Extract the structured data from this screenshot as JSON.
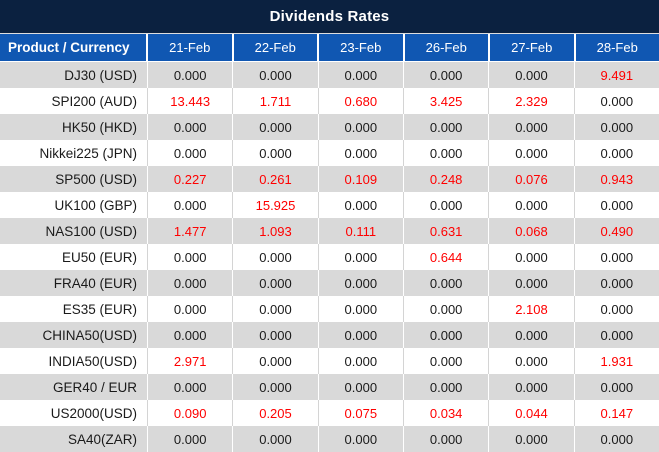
{
  "title": "Dividends Rates",
  "colors": {
    "title_bar_bg": "#0b2140",
    "header_bg": "#1057b2",
    "row_alt_bg": "#d9d9d9",
    "row_bg": "#ffffff",
    "value_red": "#ff0000",
    "value_black": "#1a1a1a",
    "header_text": "#ffffff",
    "border_on_white": "#d4d4d4",
    "border_on_gray": "#ffffff"
  },
  "table": {
    "product_header": "Product / Currency",
    "date_headers": [
      "21-Feb",
      "22-Feb",
      "23-Feb",
      "26-Feb",
      "27-Feb",
      "28-Feb"
    ],
    "rows": [
      {
        "product": "DJ30 (USD)",
        "values": [
          "0.000",
          "0.000",
          "0.000",
          "0.000",
          "0.000",
          "9.491"
        ]
      },
      {
        "product": "SPI200 (AUD)",
        "values": [
          "13.443",
          "1.711",
          "0.680",
          "3.425",
          "2.329",
          "0.000"
        ]
      },
      {
        "product": "HK50 (HKD)",
        "values": [
          "0.000",
          "0.000",
          "0.000",
          "0.000",
          "0.000",
          "0.000"
        ]
      },
      {
        "product": "Nikkei225 (JPN)",
        "values": [
          "0.000",
          "0.000",
          "0.000",
          "0.000",
          "0.000",
          "0.000"
        ]
      },
      {
        "product": "SP500 (USD)",
        "values": [
          "0.227",
          "0.261",
          "0.109",
          "0.248",
          "0.076",
          "0.943"
        ]
      },
      {
        "product": "UK100 (GBP)",
        "values": [
          "0.000",
          "15.925",
          "0.000",
          "0.000",
          "0.000",
          "0.000"
        ]
      },
      {
        "product": "NAS100 (USD)",
        "values": [
          "1.477",
          "1.093",
          "0.111",
          "0.631",
          "0.068",
          "0.490"
        ]
      },
      {
        "product": "EU50 (EUR)",
        "values": [
          "0.000",
          "0.000",
          "0.000",
          "0.644",
          "0.000",
          "0.000"
        ]
      },
      {
        "product": "FRA40 (EUR)",
        "values": [
          "0.000",
          "0.000",
          "0.000",
          "0.000",
          "0.000",
          "0.000"
        ]
      },
      {
        "product": "ES35 (EUR)",
        "values": [
          "0.000",
          "0.000",
          "0.000",
          "0.000",
          "2.108",
          "0.000"
        ]
      },
      {
        "product": "CHINA50(USD)",
        "values": [
          "0.000",
          "0.000",
          "0.000",
          "0.000",
          "0.000",
          "0.000"
        ]
      },
      {
        "product": "INDIA50(USD)",
        "values": [
          "2.971",
          "0.000",
          "0.000",
          "0.000",
          "0.000",
          "1.931"
        ]
      },
      {
        "product": "GER40 / EUR",
        "values": [
          "0.000",
          "0.000",
          "0.000",
          "0.000",
          "0.000",
          "0.000"
        ]
      },
      {
        "product": "US2000(USD)",
        "values": [
          "0.090",
          "0.205",
          "0.075",
          "0.034",
          "0.044",
          "0.147"
        ]
      },
      {
        "product": "SA40(ZAR)",
        "values": [
          "0.000",
          "0.000",
          "0.000",
          "0.000",
          "0.000",
          "0.000"
        ]
      }
    ]
  }
}
